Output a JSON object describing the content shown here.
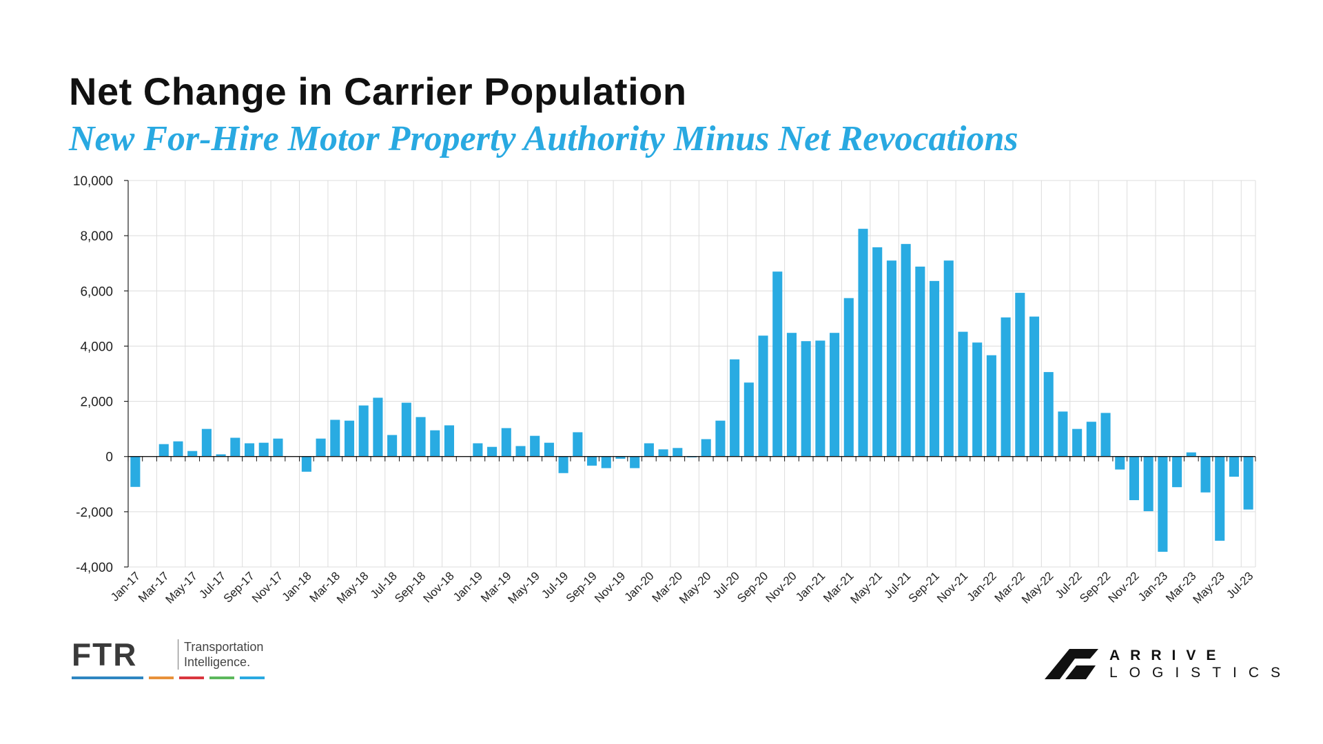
{
  "header": {
    "title": "Net Change in Carrier Population",
    "subtitle": "New For-Hire Motor Property Authority Minus Net Revocations"
  },
  "colors": {
    "bar": "#29abe2",
    "title": "#111111",
    "subtitle": "#29a9e1",
    "grid": "#dcdcdc"
  },
  "chart_data": {
    "type": "bar",
    "title": "Net Change in Carrier Population",
    "subtitle": "New For-Hire Motor Property Authority Minus Net Revocations",
    "xlabel": "",
    "ylabel": "",
    "ylim": [
      -4000,
      10000
    ],
    "yticks": [
      -4000,
      -2000,
      0,
      2000,
      4000,
      6000,
      8000,
      10000
    ],
    "ytick_labels": [
      "-4,000",
      "-2,000",
      "0",
      "2,000",
      "4,000",
      "6,000",
      "8,000",
      "10,000"
    ],
    "grid": true,
    "legend": "none",
    "categories": [
      "Jan-17",
      "Feb-17",
      "Mar-17",
      "Apr-17",
      "May-17",
      "Jun-17",
      "Jul-17",
      "Aug-17",
      "Sep-17",
      "Oct-17",
      "Nov-17",
      "Dec-17",
      "Jan-18",
      "Feb-18",
      "Mar-18",
      "Apr-18",
      "May-18",
      "Jun-18",
      "Jul-18",
      "Aug-18",
      "Sep-18",
      "Oct-18",
      "Nov-18",
      "Dec-18",
      "Jan-19",
      "Feb-19",
      "Mar-19",
      "Apr-19",
      "May-19",
      "Jun-19",
      "Jul-19",
      "Aug-19",
      "Sep-19",
      "Oct-19",
      "Nov-19",
      "Dec-19",
      "Jan-20",
      "Feb-20",
      "Mar-20",
      "Apr-20",
      "May-20",
      "Jun-20",
      "Jul-20",
      "Aug-20",
      "Sep-20",
      "Oct-20",
      "Nov-20",
      "Dec-20",
      "Jan-21",
      "Feb-21",
      "Mar-21",
      "Apr-21",
      "May-21",
      "Jun-21",
      "Jul-21",
      "Aug-21",
      "Sep-21",
      "Oct-21",
      "Nov-21",
      "Dec-21",
      "Jan-22",
      "Feb-22",
      "Mar-22",
      "Apr-22",
      "May-22",
      "Jun-22",
      "Jul-22",
      "Aug-22",
      "Sep-22",
      "Oct-22",
      "Nov-22",
      "Dec-22",
      "Jan-23",
      "Feb-23",
      "Mar-23",
      "Apr-23",
      "May-23",
      "Jun-23",
      "Jul-23"
    ],
    "tick_labels": [
      "Jan-17",
      "Mar-17",
      "May-17",
      "Jul-17",
      "Sep-17",
      "Nov-17",
      "Jan-18",
      "Mar-18",
      "May-18",
      "Jul-18",
      "Sep-18",
      "Nov-18",
      "Jan-19",
      "Mar-19",
      "May-19",
      "Jul-19",
      "Sep-19",
      "Nov-19",
      "Jan-20",
      "Mar-20",
      "May-20",
      "Jul-20",
      "Sep-20",
      "Nov-20",
      "Jan-21",
      "Mar-21",
      "May-21",
      "Jul-21",
      "Sep-21",
      "Nov-21",
      "Jan-22",
      "Mar-22",
      "May-22",
      "Jul-22",
      "Sep-22",
      "Nov-22",
      "Jan-23",
      "Mar-23",
      "May-23",
      "Jul-23"
    ],
    "values": [
      -1100,
      0,
      450,
      550,
      200,
      1000,
      80,
      680,
      480,
      500,
      650,
      0,
      -550,
      650,
      1330,
      1300,
      1850,
      2130,
      780,
      1950,
      1430,
      950,
      1130,
      0,
      480,
      350,
      1030,
      380,
      750,
      500,
      -600,
      880,
      -330,
      -420,
      -80,
      -420,
      480,
      260,
      310,
      -30,
      630,
      1300,
      3520,
      2680,
      4380,
      6700,
      4480,
      4180,
      4200,
      4480,
      5740,
      8250,
      7580,
      7100,
      7700,
      6880,
      6360,
      7100,
      4520,
      4130,
      3670,
      5040,
      5930,
      5070,
      3060,
      1630,
      1000,
      1260,
      1580,
      -470,
      -1580,
      -1980,
      -3450,
      -1110,
      150,
      -1300,
      -3050,
      -730,
      -1920
    ]
  },
  "footer": {
    "ftr_logo": "FTR",
    "ftr_tagline_1": "Transportation",
    "ftr_tagline_2": "Intelligence.",
    "ftr_stripe_colors": [
      "#2e86c1",
      "#e8913a",
      "#d9363e",
      "#5cb85c",
      "#29a9e1"
    ],
    "arrive_word": "ARRIVE",
    "arrive_sub": "LOGISTICS"
  }
}
